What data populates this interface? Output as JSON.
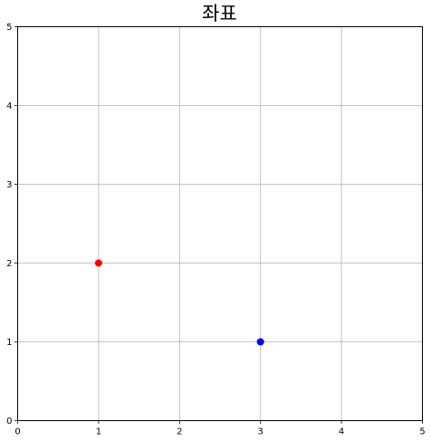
{
  "chart_data": {
    "type": "scatter",
    "title": "좌표",
    "xlabel": "",
    "ylabel": "",
    "xlim": [
      0,
      5
    ],
    "ylim": [
      0,
      5
    ],
    "xticks": [
      "0",
      "1",
      "2",
      "3",
      "4",
      "5"
    ],
    "yticks": [
      "0",
      "1",
      "2",
      "3",
      "4",
      "5"
    ],
    "grid": true,
    "points": [
      {
        "x": 1,
        "y": 2,
        "color": "#ff0000"
      },
      {
        "x": 3,
        "y": 1,
        "color": "#0000ff"
      }
    ]
  },
  "colors": {
    "grid": "#b0b0b0",
    "axis": "#000000",
    "background": "#ffffff"
  }
}
